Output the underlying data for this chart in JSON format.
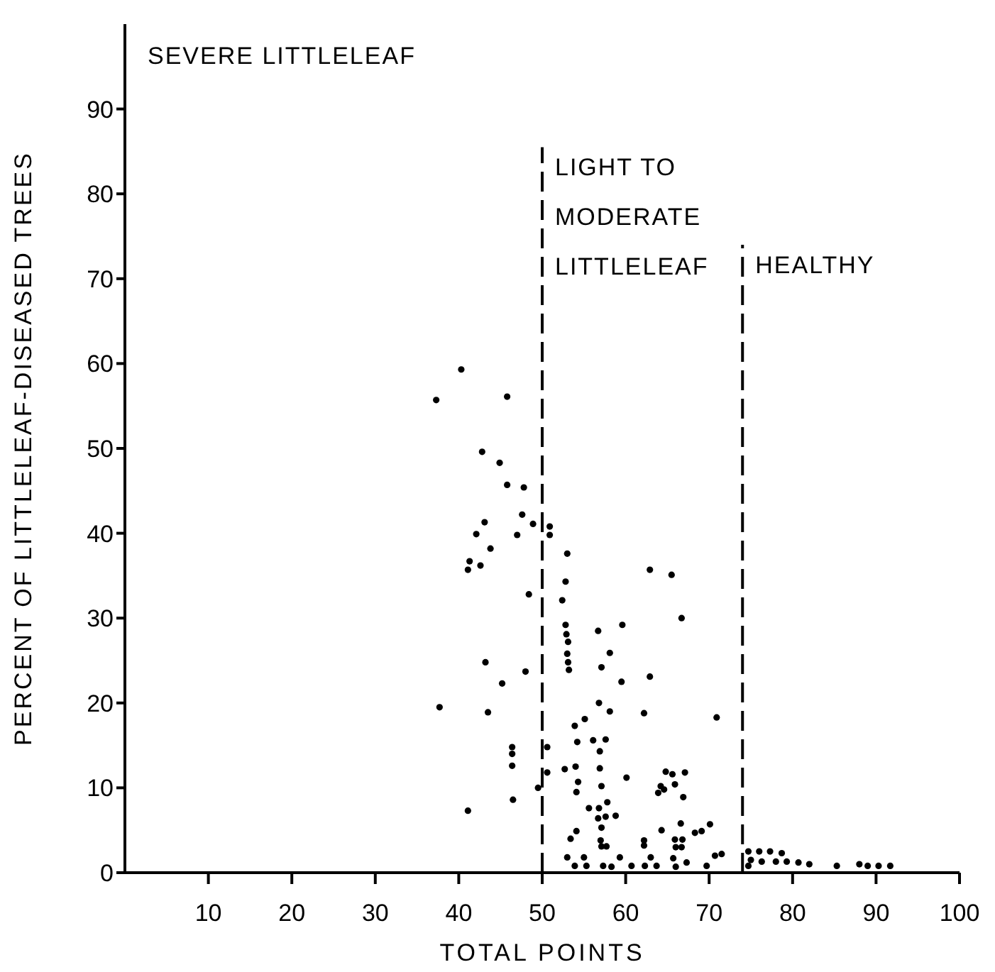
{
  "chart_data": {
    "type": "scatter",
    "xlabel": "TOTAL POINTS",
    "ylabel": "PERCENT OF LITTLELEAF-DISEASED TREES",
    "annotations": [
      "SEVERE LITTLELEAF"
    ],
    "xlim": [
      0,
      100
    ],
    "xticks": [
      10,
      20,
      30,
      40,
      50,
      60,
      70,
      80,
      90,
      100
    ],
    "ylim": [
      0,
      100
    ],
    "yticks": [
      0,
      10,
      20,
      30,
      40,
      50,
      60,
      70,
      80,
      90
    ],
    "grid": false,
    "legend": false,
    "marker": "circle",
    "ref_lines": [
      {
        "axis": "x",
        "value": 50,
        "label": "LIGHT TO MODERATE LITTLELEAF",
        "line_style": "dashed",
        "color": "#000000"
      },
      {
        "axis": "x",
        "value": 74,
        "label": "HEALTHY",
        "line_style": "dashed",
        "color": "#000000"
      }
    ],
    "series": [
      {
        "color": "#000000",
        "x": [
          40.3,
          37.3,
          45.8,
          42.8,
          44.9,
          45.8,
          47.8,
          47.6,
          43.1,
          48.9,
          42.1,
          47.0,
          50.9,
          50.9,
          43.8,
          41.3,
          42.6,
          41.1,
          53.0,
          52.8,
          48.4,
          52.4,
          52.8,
          52.9,
          53.1,
          53.0,
          53.1,
          53.2,
          43.2,
          48.0,
          45.2,
          37.7,
          43.5,
          46.4,
          46.4,
          46.4,
          50.6,
          50.6,
          52.7,
          49.5,
          46.5,
          41.1,
          53.4,
          62.9,
          65.5,
          66.7,
          56.7,
          59.6,
          58.1,
          57.1,
          59.5,
          62.9,
          56.8,
          58.1,
          62.2,
          55.1,
          53.9,
          70.9,
          54.2,
          56.1,
          57.6,
          56.9,
          54.0,
          56.9,
          60.1,
          54.3,
          64.8,
          65.6,
          67.1,
          64.2,
          64.6,
          63.9,
          65.9,
          57.1,
          54.1,
          66.9,
          57.8,
          55.6,
          56.8,
          56.7,
          57.6,
          58.8,
          57.1,
          54.1,
          64.3,
          66.6,
          68.3,
          69.1,
          70.1,
          57.0,
          62.2,
          65.9,
          66.8,
          57.1,
          57.7,
          62.2,
          66.0,
          66.7,
          53.0,
          53.9,
          55.0,
          55.3,
          57.3,
          58.3,
          59.3,
          60.7,
          62.3,
          63.0,
          63.7,
          65.7,
          66.0,
          67.3,
          69.7,
          70.7,
          71.5,
          74.7,
          76.0,
          77.3,
          78.7,
          75.0,
          76.3,
          78.0,
          79.3,
          80.7,
          82.0,
          74.7,
          85.3,
          88.0,
          89.0,
          90.3,
          91.7
        ],
        "values": [
          59.3,
          55.7,
          56.1,
          49.6,
          48.3,
          45.7,
          45.4,
          42.2,
          41.3,
          41.1,
          39.9,
          39.8,
          40.8,
          39.8,
          38.2,
          36.7,
          36.2,
          35.7,
          37.6,
          34.3,
          32.8,
          32.1,
          29.2,
          28.1,
          27.2,
          25.8,
          24.8,
          23.9,
          24.8,
          23.7,
          22.3,
          19.5,
          18.9,
          14.8,
          14.0,
          12.6,
          14.8,
          11.8,
          12.2,
          10.0,
          8.6,
          7.3,
          4.0,
          35.7,
          35.1,
          30.0,
          28.5,
          29.2,
          25.9,
          24.2,
          22.5,
          23.1,
          20.0,
          19.0,
          18.8,
          18.1,
          17.3,
          18.3,
          15.4,
          15.6,
          15.7,
          14.3,
          12.5,
          12.3,
          11.2,
          10.7,
          11.9,
          11.6,
          11.8,
          10.2,
          9.8,
          9.4,
          10.4,
          10.2,
          9.5,
          8.9,
          8.3,
          7.6,
          7.6,
          6.4,
          6.6,
          6.7,
          5.3,
          4.9,
          5.0,
          5.8,
          4.7,
          4.9,
          5.7,
          3.8,
          3.8,
          3.9,
          3.9,
          3.1,
          3.1,
          3.2,
          3.0,
          3.0,
          1.8,
          0.8,
          1.8,
          0.8,
          0.8,
          0.7,
          1.8,
          0.8,
          0.8,
          1.8,
          0.8,
          1.7,
          0.7,
          1.2,
          0.8,
          2.0,
          2.2,
          2.5,
          2.5,
          2.5,
          2.3,
          1.5,
          1.3,
          1.3,
          1.3,
          1.2,
          1.0,
          0.8,
          0.8,
          1.0,
          0.8,
          0.8,
          0.8
        ]
      }
    ]
  }
}
